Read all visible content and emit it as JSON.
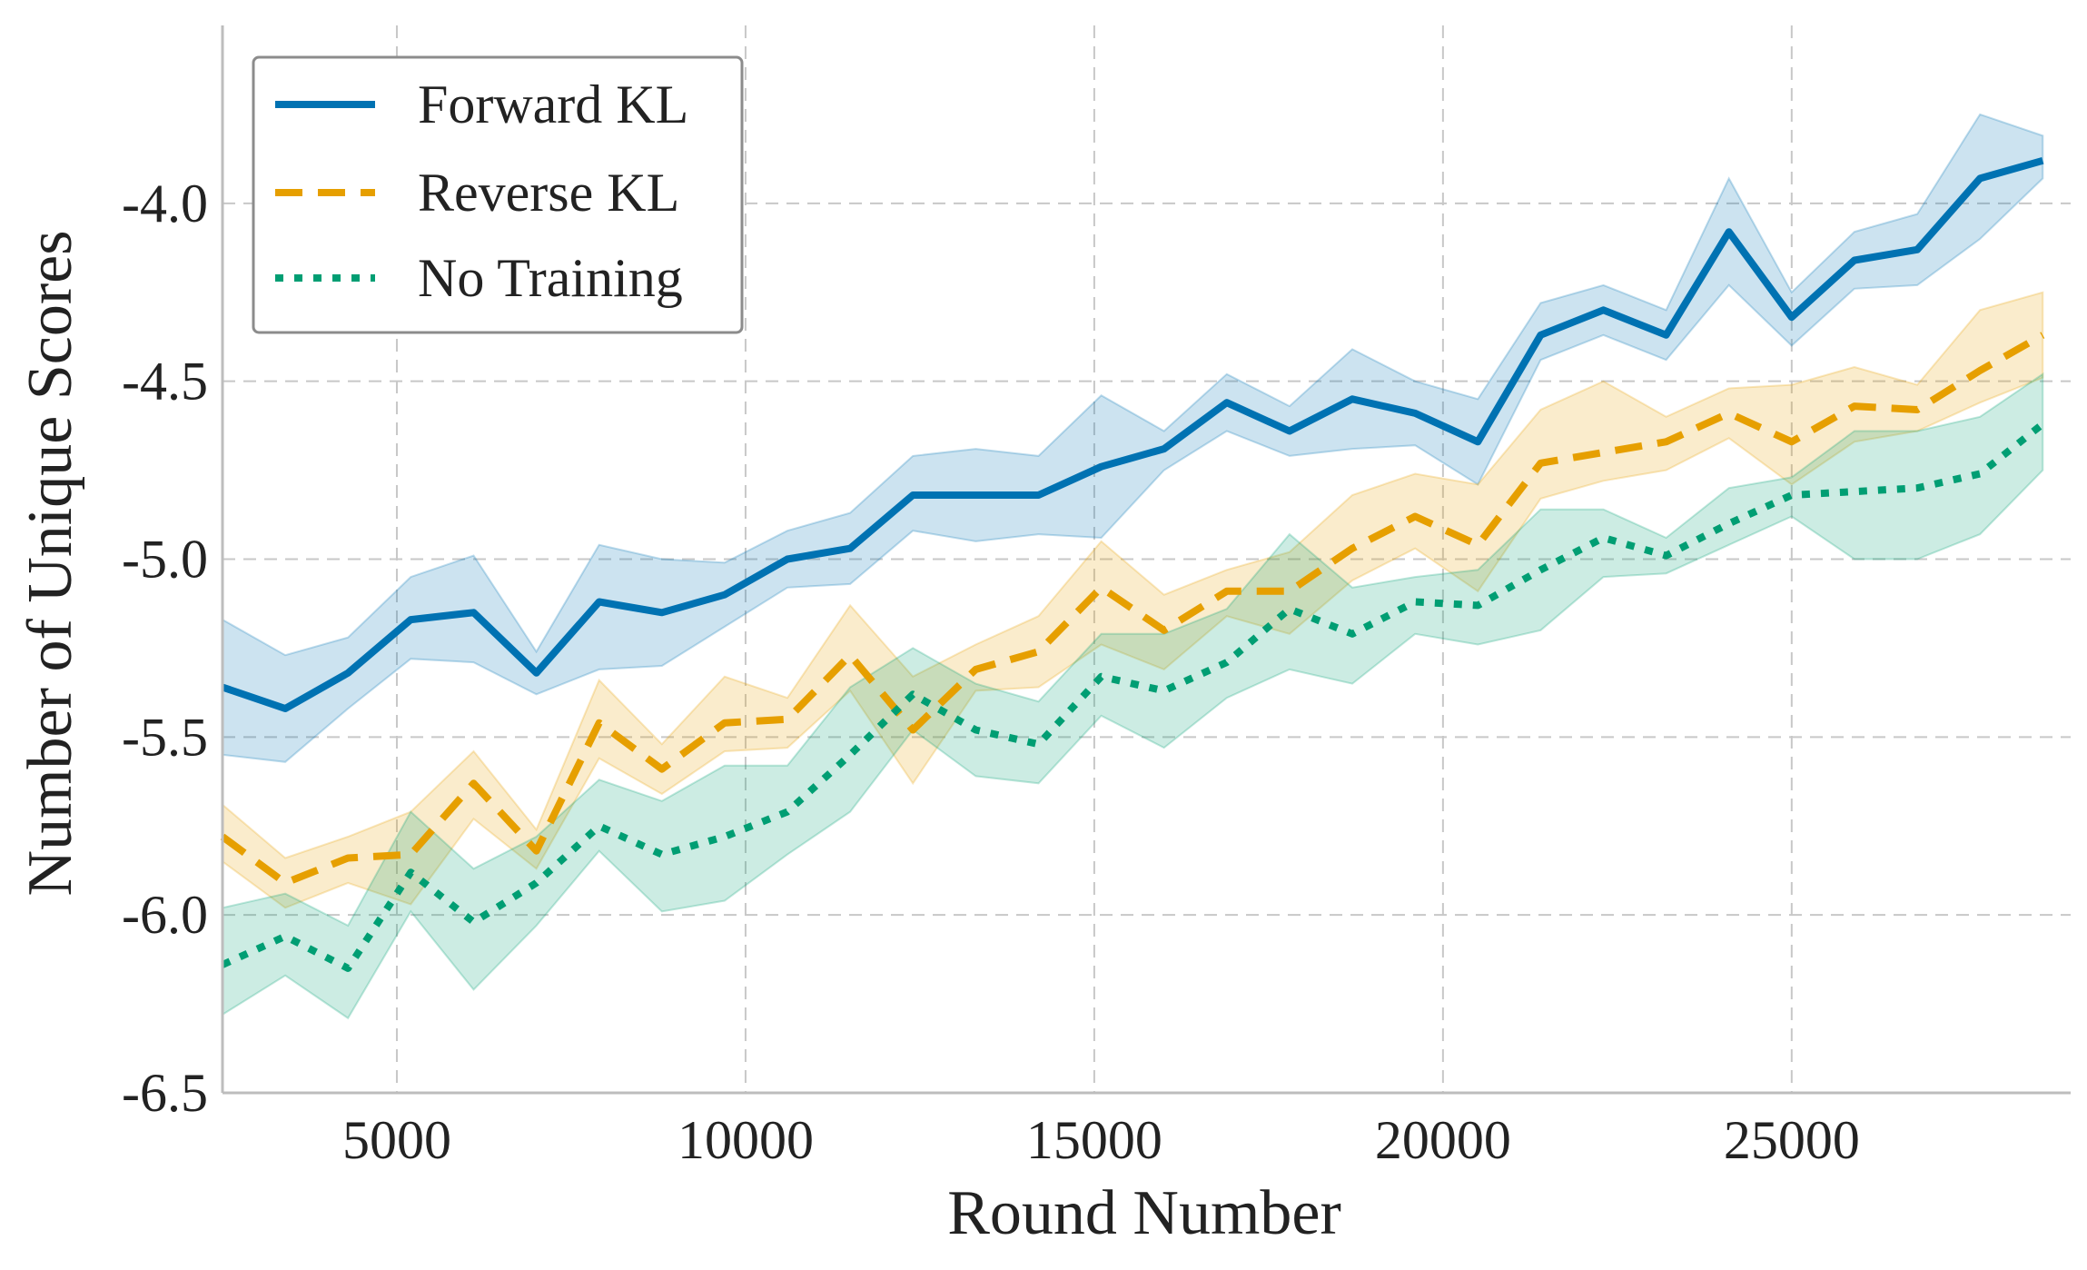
{
  "chart_data": {
    "type": "line",
    "title": "",
    "xlabel": "Round Number",
    "ylabel": "Number of Unique Scores",
    "xlim": [
      2500,
      29000
    ],
    "ylim": [
      -6.5,
      -3.5
    ],
    "xticks": [
      5000,
      10000,
      15000,
      20000,
      25000
    ],
    "xtick_labels": [
      "5000",
      "10000",
      "15000",
      "20000",
      "25000"
    ],
    "yticks": [
      -6.5,
      -6.0,
      -5.5,
      -5.0,
      -4.5,
      -4.0
    ],
    "ytick_labels": [
      "-6.5",
      "-6.0",
      "-5.5",
      "-5.0",
      "-4.5",
      "-4.0"
    ],
    "grid": true,
    "legend_position": "top-left",
    "x": [
      2500,
      3400,
      4300,
      5200,
      6100,
      7000,
      7900,
      8800,
      9700,
      10600,
      11500,
      12400,
      13300,
      14200,
      15100,
      16000,
      16900,
      17800,
      18700,
      19600,
      20500,
      21400,
      22300,
      23200,
      24100,
      25000,
      25900,
      26800,
      27700,
      28600
    ],
    "series": [
      {
        "name": "Forward KL",
        "color": "#0072B2",
        "style": "solid",
        "values": [
          -5.36,
          -5.42,
          -5.32,
          -5.17,
          -5.15,
          -5.32,
          -5.12,
          -5.15,
          -5.1,
          -5.0,
          -4.97,
          -4.82,
          -4.82,
          -4.82,
          -4.74,
          -4.69,
          -4.56,
          -4.64,
          -4.55,
          -4.59,
          -4.67,
          -4.37,
          -4.3,
          -4.37,
          -4.08,
          -4.32,
          -4.16,
          -4.13,
          -3.93,
          -3.88
        ],
        "lower": [
          -5.55,
          -5.57,
          -5.42,
          -5.28,
          -5.29,
          -5.38,
          -5.31,
          -5.3,
          -5.19,
          -5.08,
          -5.07,
          -4.92,
          -4.95,
          -4.93,
          -4.94,
          -4.75,
          -4.64,
          -4.71,
          -4.69,
          -4.68,
          -4.79,
          -4.44,
          -4.37,
          -4.44,
          -4.23,
          -4.4,
          -4.24,
          -4.23,
          -4.1,
          -3.93
        ],
        "upper": [
          -5.17,
          -5.27,
          -5.22,
          -5.05,
          -4.99,
          -5.26,
          -4.96,
          -5.0,
          -5.01,
          -4.92,
          -4.87,
          -4.71,
          -4.69,
          -4.71,
          -4.54,
          -4.64,
          -4.48,
          -4.57,
          -4.41,
          -4.5,
          -4.55,
          -4.28,
          -4.23,
          -4.3,
          -3.93,
          -4.25,
          -4.08,
          -4.03,
          -3.75,
          -3.81
        ]
      },
      {
        "name": "Reverse KL",
        "color": "#E69F00",
        "style": "dashed",
        "values": [
          -5.78,
          -5.91,
          -5.84,
          -5.83,
          -5.63,
          -5.82,
          -5.46,
          -5.59,
          -5.46,
          -5.45,
          -5.27,
          -5.48,
          -5.31,
          -5.26,
          -5.08,
          -5.2,
          -5.09,
          -5.09,
          -4.97,
          -4.88,
          -4.96,
          -4.73,
          -4.7,
          -4.67,
          -4.59,
          -4.67,
          -4.57,
          -4.58,
          -4.47,
          -4.37
        ],
        "lower": [
          -5.85,
          -5.98,
          -5.91,
          -5.97,
          -5.73,
          -5.87,
          -5.56,
          -5.66,
          -5.54,
          -5.53,
          -5.37,
          -5.63,
          -5.37,
          -5.36,
          -5.24,
          -5.31,
          -5.16,
          -5.21,
          -5.06,
          -4.97,
          -5.09,
          -4.83,
          -4.78,
          -4.75,
          -4.66,
          -4.79,
          -4.67,
          -4.64,
          -4.56,
          -4.49
        ],
        "upper": [
          -5.69,
          -5.84,
          -5.78,
          -5.71,
          -5.54,
          -5.76,
          -5.34,
          -5.52,
          -5.33,
          -5.39,
          -5.13,
          -5.33,
          -5.24,
          -5.16,
          -4.95,
          -5.1,
          -5.03,
          -4.98,
          -4.82,
          -4.76,
          -4.79,
          -4.58,
          -4.5,
          -4.6,
          -4.52,
          -4.51,
          -4.46,
          -4.51,
          -4.3,
          -4.25
        ]
      },
      {
        "name": "No Training",
        "color": "#009E73",
        "style": "dotted",
        "values": [
          -6.14,
          -6.06,
          -6.15,
          -5.88,
          -6.02,
          -5.91,
          -5.75,
          -5.83,
          -5.78,
          -5.71,
          -5.55,
          -5.38,
          -5.48,
          -5.52,
          -5.33,
          -5.37,
          -5.29,
          -5.14,
          -5.21,
          -5.12,
          -5.13,
          -5.03,
          -4.94,
          -4.99,
          -4.9,
          -4.82,
          -4.81,
          -4.8,
          -4.76,
          -4.62
        ],
        "lower": [
          -6.28,
          -6.17,
          -6.29,
          -5.99,
          -6.21,
          -6.03,
          -5.82,
          -5.99,
          -5.96,
          -5.83,
          -5.71,
          -5.48,
          -5.61,
          -5.63,
          -5.44,
          -5.53,
          -5.39,
          -5.31,
          -5.35,
          -5.21,
          -5.24,
          -5.2,
          -5.05,
          -5.04,
          -4.96,
          -4.88,
          -5.0,
          -5.0,
          -4.93,
          -4.75
        ],
        "upper": [
          -5.98,
          -5.94,
          -6.03,
          -5.71,
          -5.87,
          -5.78,
          -5.62,
          -5.68,
          -5.58,
          -5.58,
          -5.36,
          -5.25,
          -5.35,
          -5.4,
          -5.21,
          -5.21,
          -5.14,
          -4.93,
          -5.08,
          -5.05,
          -5.03,
          -4.86,
          -4.86,
          -4.94,
          -4.8,
          -4.77,
          -4.64,
          -4.64,
          -4.6,
          -4.48
        ]
      }
    ]
  }
}
